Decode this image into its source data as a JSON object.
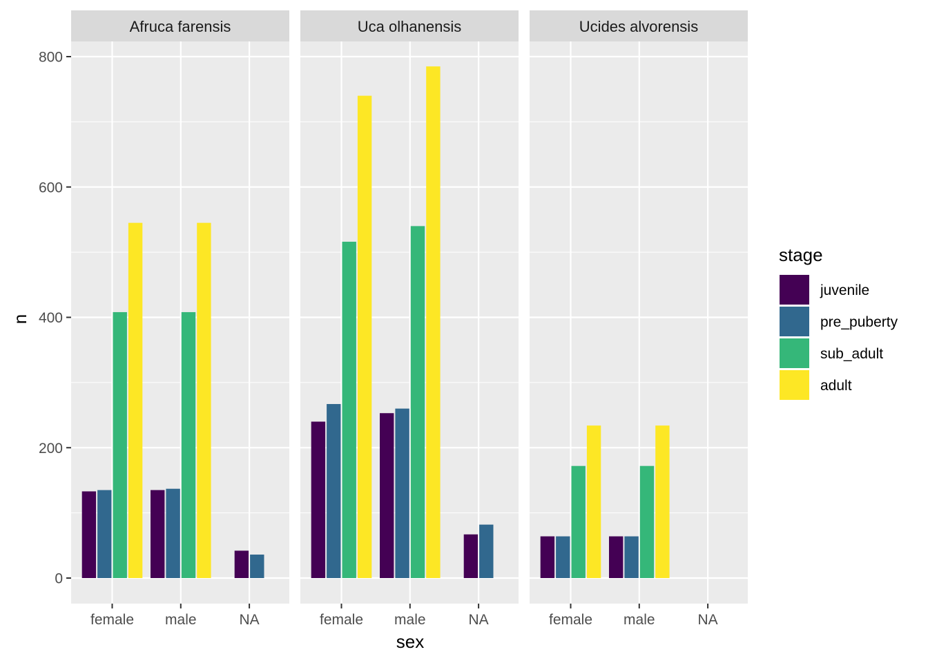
{
  "chart_data": {
    "type": "bar",
    "facet_by": "species",
    "panels": [
      {
        "title": "Afruca farensis",
        "categories": [
          "female",
          "male",
          "NA"
        ],
        "series": [
          {
            "name": "juvenile",
            "values": [
              133,
              135,
              42
            ]
          },
          {
            "name": "pre_puberty",
            "values": [
              135,
              137,
              36
            ]
          },
          {
            "name": "sub_adult",
            "values": [
              408,
              408,
              null
            ]
          },
          {
            "name": "adult",
            "values": [
              545,
              545,
              null
            ]
          }
        ]
      },
      {
        "title": "Uca olhanensis",
        "categories": [
          "female",
          "male",
          "NA"
        ],
        "series": [
          {
            "name": "juvenile",
            "values": [
              240,
              253,
              67
            ]
          },
          {
            "name": "pre_puberty",
            "values": [
              267,
              260,
              82
            ]
          },
          {
            "name": "sub_adult",
            "values": [
              516,
              540,
              null
            ]
          },
          {
            "name": "adult",
            "values": [
              740,
              785,
              null
            ]
          }
        ]
      },
      {
        "title": "Ucides alvorensis",
        "categories": [
          "female",
          "male",
          "NA"
        ],
        "series": [
          {
            "name": "juvenile",
            "values": [
              64,
              64,
              null
            ]
          },
          {
            "name": "pre_puberty",
            "values": [
              64,
              64,
              null
            ]
          },
          {
            "name": "sub_adult",
            "values": [
              172,
              172,
              null
            ]
          },
          {
            "name": "adult",
            "values": [
              234,
              234,
              null
            ]
          }
        ]
      }
    ],
    "xlabel": "sex",
    "ylabel": "n",
    "ylim": [
      -40,
      855
    ],
    "yticks": [
      0,
      200,
      400,
      600,
      800
    ],
    "legend": {
      "title": "stage",
      "position": "right",
      "items": [
        {
          "name": "juvenile",
          "color": "#440154"
        },
        {
          "name": "pre_puberty",
          "color": "#31688E"
        },
        {
          "name": "sub_adult",
          "color": "#35B779"
        },
        {
          "name": "adult",
          "color": "#FDE725"
        }
      ]
    },
    "grid": true,
    "colors": {
      "panel_background": "#EBEBEB",
      "strip_background": "#D9D9D9",
      "grid_line": "#FFFFFF"
    }
  }
}
